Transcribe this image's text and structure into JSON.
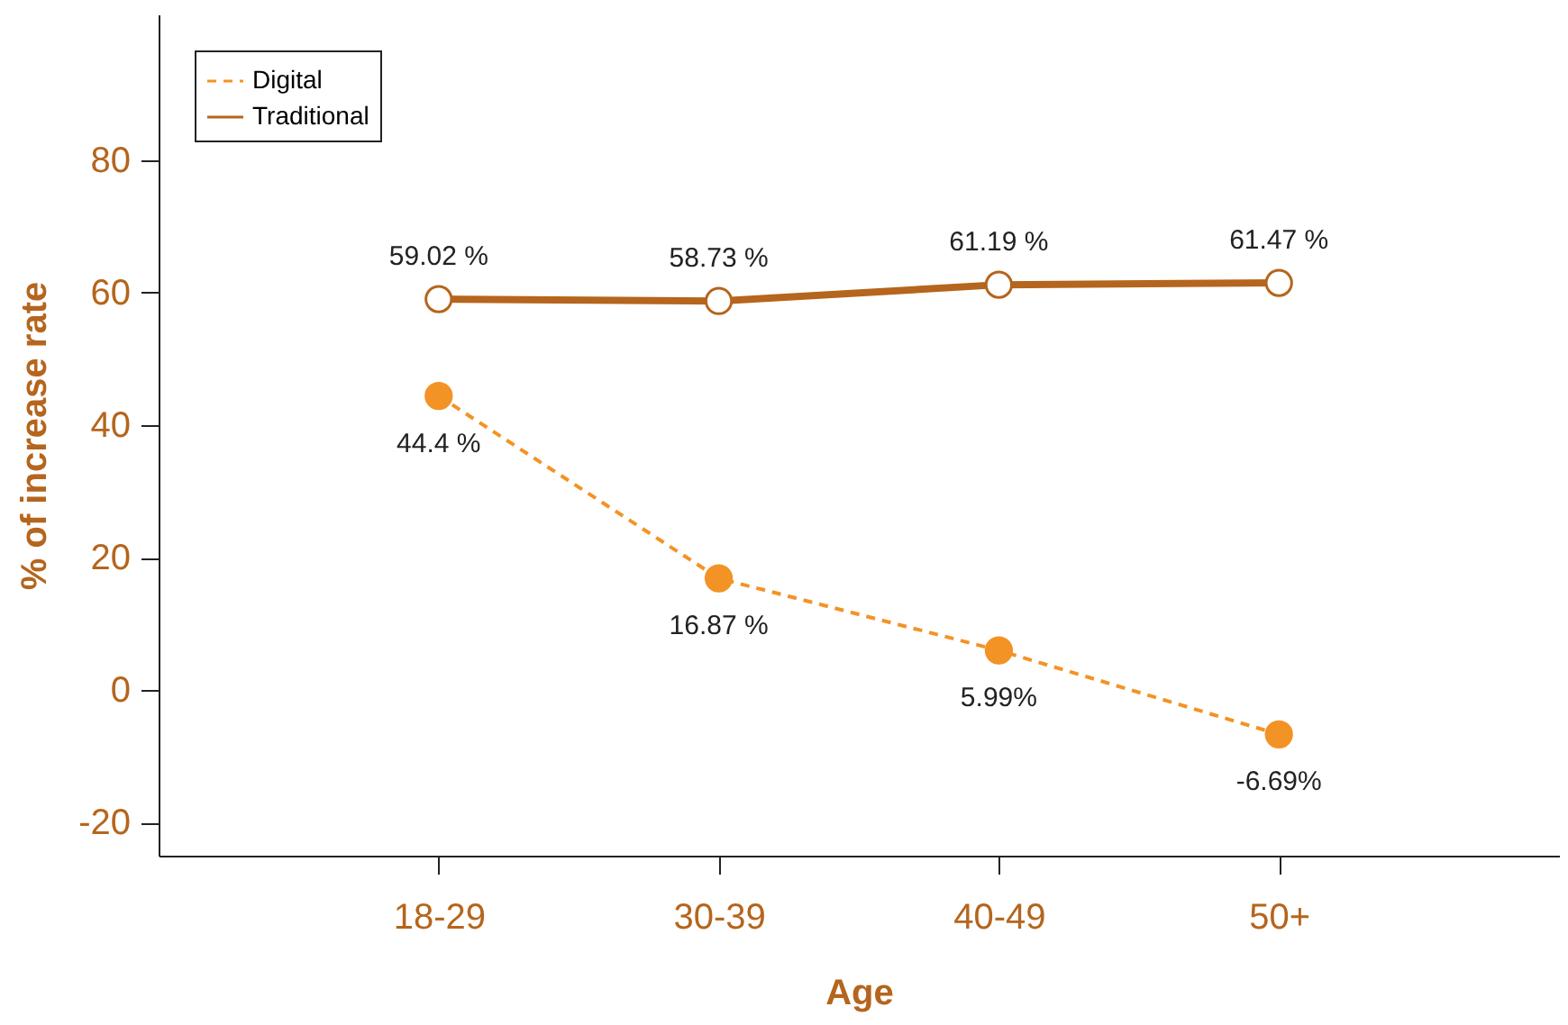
{
  "chart_data": {
    "type": "line",
    "xlabel": "Age",
    "ylabel": "% of increase rate",
    "categories": [
      "18-29",
      "30-39",
      "40-49",
      "50+"
    ],
    "series": [
      {
        "name": "Digital",
        "color": "#f39325",
        "line_style": "dashed",
        "values": [
          44.4,
          16.87,
          5.99,
          -6.69
        ],
        "value_labels": [
          "44.4 %",
          "16.87 %",
          "5.99%",
          "-6.69%"
        ]
      },
      {
        "name": "Traditional",
        "color": "#b5651d",
        "line_style": "solid",
        "values": [
          59.02,
          58.73,
          61.19,
          61.47
        ],
        "value_labels": [
          "59.02 %",
          "58.73 %",
          "61.19 %",
          "61.47 %"
        ]
      }
    ],
    "ylim": [
      -25,
      102
    ],
    "yticks": [
      -20,
      0,
      20,
      40,
      60,
      80
    ],
    "marker": "circle",
    "legend": "top left",
    "grid": false
  }
}
